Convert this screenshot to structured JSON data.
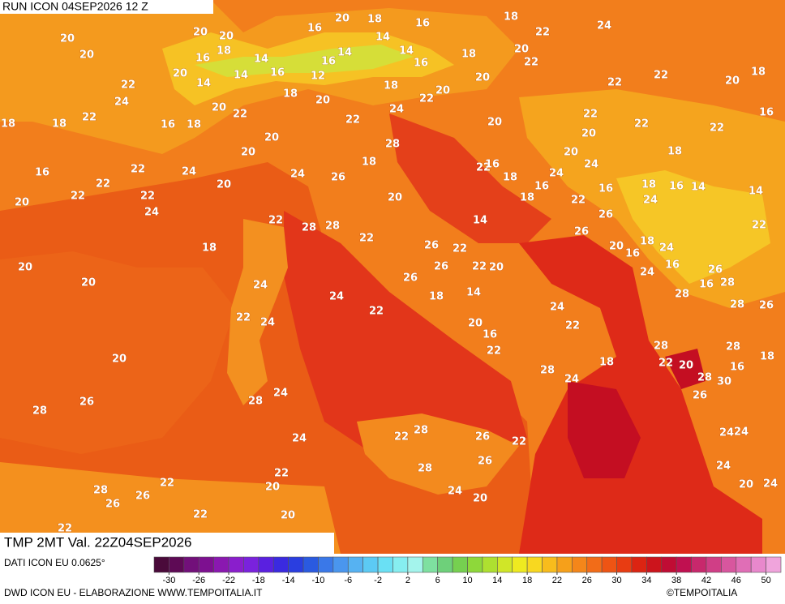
{
  "header": {
    "run": "RUN ICON 04SEP2026 12 Z",
    "variable": "TMP 2MT Val. 22Z04SEP2026"
  },
  "map": {
    "labels": [
      20,
      20,
      20,
      20,
      18,
      16,
      20,
      14,
      14,
      14,
      16,
      20,
      18,
      14,
      16,
      18,
      22,
      24,
      14,
      16,
      14,
      16,
      18,
      20,
      22,
      16,
      12,
      18,
      18,
      20,
      22,
      20,
      20,
      24,
      22,
      24,
      18,
      18,
      22,
      16,
      18,
      20,
      22,
      22,
      20,
      22,
      22,
      22,
      20,
      18,
      16,
      22,
      20,
      22,
      28,
      20,
      20,
      20,
      18,
      16,
      22,
      24,
      22,
      20,
      24,
      26,
      18,
      22,
      16,
      18,
      24,
      24,
      20,
      22,
      22,
      24,
      20,
      18,
      16,
      22,
      16,
      18,
      16,
      14,
      14,
      24,
      26,
      22,
      28,
      28,
      14,
      26,
      22,
      18,
      22,
      26,
      22,
      20,
      16,
      18,
      24,
      16,
      24,
      26,
      20,
      20,
      24,
      26,
      22,
      20,
      26,
      14,
      18,
      16,
      28,
      28,
      24,
      22,
      22,
      24,
      24,
      22,
      20,
      16,
      28,
      26,
      22,
      18,
      28,
      28,
      20,
      22,
      20,
      18,
      16,
      28,
      30,
      28,
      24,
      26,
      28,
      24,
      28,
      26,
      28,
      22,
      24,
      26,
      22,
      24,
      24,
      28,
      26,
      24,
      22,
      22,
      26,
      20,
      28,
      26,
      24,
      20,
      20,
      24,
      22,
      20,
      22
    ]
  },
  "legend": {
    "source": "DATI ICON EU 0.0625°",
    "credit": "DWD ICON EU - ELABORAZIONE WWW.TEMPOITALIA.IT",
    "brand": "©TEMPOITALIA",
    "range": [
      -32,
      52
    ],
    "colors": [
      "#4a0a3a",
      "#5e0a55",
      "#72107a",
      "#7d1090",
      "#8a18b0",
      "#8a1ecc",
      "#7a22dd",
      "#5a20e0",
      "#3a2ae0",
      "#2a3ee0",
      "#2a5ae0",
      "#3a78e8",
      "#4a96ee",
      "#56b2f2",
      "#5ccaf4",
      "#6ae0f4",
      "#86eef0",
      "#a4f4ec",
      "#7ee0a0",
      "#6ed07a",
      "#76d050",
      "#8ed83a",
      "#aee030",
      "#d0e628",
      "#eeea20",
      "#f8d820",
      "#f8bc1c",
      "#f6a01a",
      "#f4861a",
      "#f26c18",
      "#ee5414",
      "#e83c12",
      "#dc2412",
      "#cc141c",
      "#c00c34",
      "#c01050",
      "#c8286c",
      "#d03e86",
      "#d8569e",
      "#e06eb6",
      "#e888cc",
      "#f0a4dc"
    ],
    "ticks": [
      -30,
      -26,
      -22,
      -18,
      -14,
      -10,
      -6,
      -2,
      2,
      6,
      10,
      14,
      18,
      22,
      26,
      30,
      34,
      38,
      42,
      46,
      50
    ]
  }
}
